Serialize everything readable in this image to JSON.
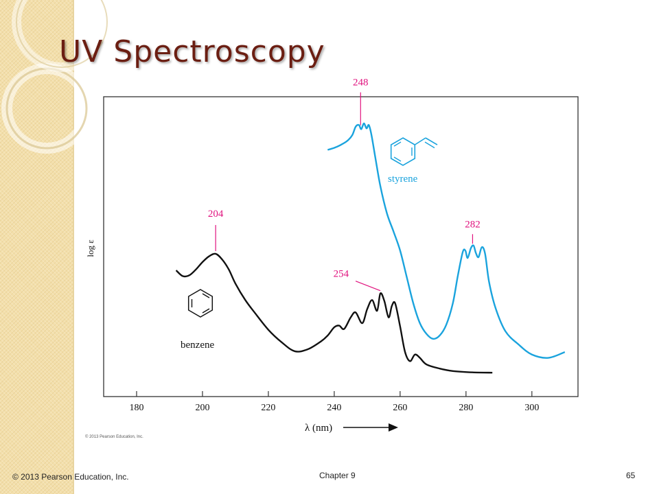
{
  "slide": {
    "title": "UV Spectroscopy",
    "footer_left": "© 2013 Pearson Education, Inc.",
    "footer_center": "Chapter 9",
    "page_number": "65"
  },
  "figure_credit": "© 2013 Pearson Education, Inc.",
  "colors": {
    "title": "#6b1e12",
    "benzene_curve": "#111111",
    "styrene_curve": "#1aa3dd",
    "peak_labels": "#e0127e",
    "strip": "#f3dfab"
  },
  "chart_data": {
    "type": "line",
    "xlabel": "λ (nm)",
    "ylabel": "log ε",
    "xlim": [
      170,
      314
    ],
    "x_ticks": [
      180,
      200,
      220,
      240,
      260,
      280,
      300
    ],
    "y_ticks_shown": false,
    "series": [
      {
        "name": "benzene",
        "x": [
          192,
          194,
          196,
          198,
          200,
          202,
          204,
          206,
          208,
          210,
          213,
          216,
          220,
          224,
          228,
          232,
          236,
          238,
          240,
          241.5,
          243,
          245,
          246.5,
          248.5,
          250,
          251.5,
          253,
          254,
          255.2,
          256.5,
          257.5,
          258.5,
          260,
          261.5,
          263,
          264.5,
          266,
          268,
          272,
          276,
          282,
          288
        ],
        "y": [
          6.4,
          6.05,
          6.1,
          6.45,
          6.9,
          7.25,
          7.4,
          7.05,
          6.45,
          5.6,
          4.6,
          3.8,
          2.8,
          2.05,
          1.5,
          1.62,
          2.1,
          2.45,
          2.95,
          3.05,
          2.85,
          3.55,
          3.85,
          3.2,
          4.05,
          4.6,
          3.95,
          5.0,
          4.55,
          3.55,
          4.25,
          4.4,
          3.0,
          1.45,
          0.9,
          1.3,
          1.1,
          0.7,
          0.45,
          0.3,
          0.22,
          0.2
        ]
      },
      {
        "name": "styrene",
        "x": [
          238,
          240,
          242,
          244,
          245.5,
          246.5,
          247.5,
          248.2,
          249,
          249.8,
          250.5,
          251.3,
          252.5,
          254,
          256,
          258,
          260,
          262,
          264,
          266,
          268,
          270,
          272,
          274,
          276,
          277.5,
          279,
          279.8,
          280.5,
          281.5,
          282.3,
          283,
          283.8,
          284.8,
          285.8,
          287,
          289,
          292,
          296,
          300,
          305,
          310
        ],
        "y": [
          13.7,
          13.82,
          14.0,
          14.25,
          14.6,
          15.1,
          15.2,
          14.95,
          15.3,
          15.0,
          15.2,
          14.6,
          13.2,
          11.5,
          9.85,
          8.75,
          7.6,
          6.0,
          4.4,
          3.2,
          2.55,
          2.25,
          2.45,
          3.1,
          4.4,
          6.05,
          7.5,
          7.6,
          7.15,
          7.75,
          7.9,
          7.45,
          7.2,
          7.8,
          7.4,
          5.7,
          4.1,
          2.7,
          1.9,
          1.3,
          1.1,
          1.45
        ]
      }
    ],
    "annotations": [
      {
        "text": "204",
        "x": 204,
        "series": "benzene"
      },
      {
        "text": "254",
        "x": 254,
        "series": "benzene"
      },
      {
        "text": "248",
        "x": 248,
        "series": "styrene"
      },
      {
        "text": "282",
        "x": 282,
        "series": "styrene"
      }
    ],
    "compound_labels": [
      "benzene",
      "styrene"
    ],
    "grid": false
  }
}
